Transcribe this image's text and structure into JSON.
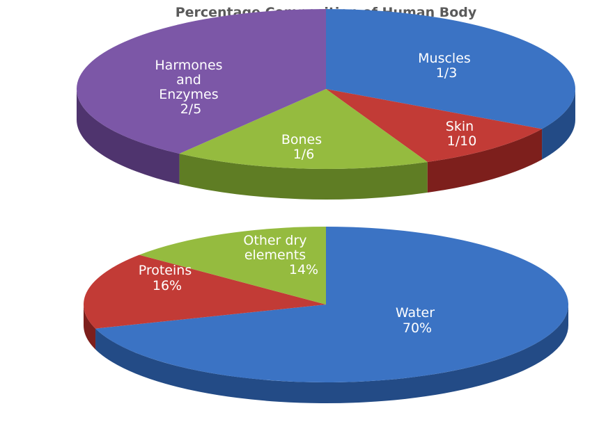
{
  "chart_data": [
    {
      "type": "pie",
      "title": "Percentage Composition of Human Body",
      "slices": [
        {
          "label": "Muscles",
          "value_label": "1/3",
          "value": 0.3333,
          "color": "#3b73c4",
          "side": "#234b86"
        },
        {
          "label": "Skin",
          "value_label": "1/10",
          "value": 0.1,
          "color": "#c23b36",
          "side": "#7d1f1c"
        },
        {
          "label": "Bones",
          "value_label": "1/6",
          "value": 0.1667,
          "color": "#95bb3f",
          "side": "#5f7d24"
        },
        {
          "label": "Harmones and Enzymes",
          "value_label": "2/5",
          "value": 0.4,
          "color": "#7c57a7",
          "side": "#4f346e"
        }
      ]
    },
    {
      "type": "pie",
      "slices": [
        {
          "label": "Water",
          "value_label": "70%",
          "value": 70,
          "color": "#3b73c4",
          "side": "#234b86"
        },
        {
          "label": "Proteins",
          "value_label": "16%",
          "value": 16,
          "color": "#c23b36",
          "side": "#7d1f1c"
        },
        {
          "label": "Other dry elements",
          "value_label": "14%",
          "value": 14,
          "color": "#95bb3f",
          "side": "#5f7d24"
        }
      ]
    }
  ]
}
